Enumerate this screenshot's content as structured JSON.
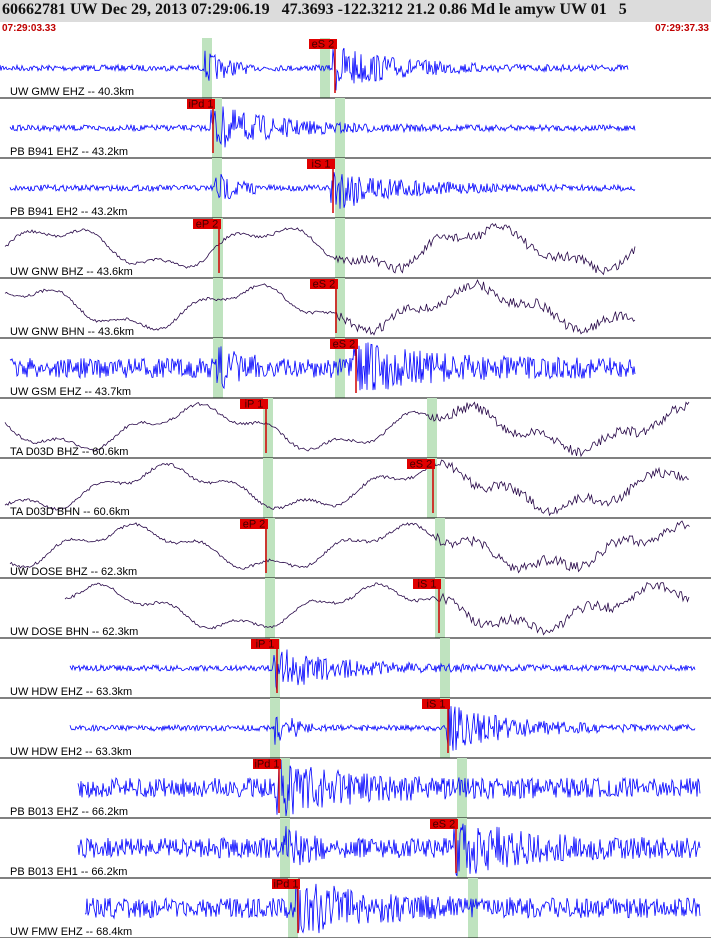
{
  "header": {
    "title": "60662781 UW Dec 29, 2013 07:29:06.19   47.3693 -122.3212 21.2 0.86 Md le amyw UW 01   5",
    "start_time": "07:29:03.33",
    "end_time": "07:29:37.33"
  },
  "traces": [
    {
      "label": "UW GMW EHZ -- 40.3km",
      "pick": "eS 2",
      "color": "#0000ff"
    },
    {
      "label": "PB B941 EHZ -- 43.2km",
      "pick": "iPd 1",
      "color": "#0000ff"
    },
    {
      "label": "PB B941 EH2 -- 43.2km",
      "pick": "iS 1",
      "color": "#0000ff"
    },
    {
      "label": "UW GNW BHZ -- 43.6km",
      "pick": "eP 2",
      "color": "#2a0a4a"
    },
    {
      "label": "UW GNW BHN -- 43.6km",
      "pick": "eS 2",
      "color": "#2a0a4a"
    },
    {
      "label": "UW GSM EHZ -- 43.7km",
      "pick": "eS 2",
      "color": "#0000ff"
    },
    {
      "label": "TA D03D BHZ -- 60.6km",
      "pick": "iP 1",
      "color": "#2a0a4a"
    },
    {
      "label": "TA D03D BHN -- 60.6km",
      "pick": "eS 2",
      "color": "#2a0a4a"
    },
    {
      "label": "UW DOSE BHZ -- 62.3km",
      "pick": "eP 2",
      "color": "#2a0a4a"
    },
    {
      "label": "UW DOSE BHN -- 62.3km",
      "pick": "iS 1",
      "color": "#2a0a4a"
    },
    {
      "label": "UW HDW EHZ -- 63.3km",
      "pick": "iP 1",
      "color": "#0000ff"
    },
    {
      "label": "UW HDW EH2 -- 63.3km",
      "pick": "iS 1",
      "color": "#0000ff"
    },
    {
      "label": "PB B013 EHZ -- 66.2km",
      "pick": "iPd 1",
      "color": "#0000ff"
    },
    {
      "label": "PB B013 EH1 -- 66.2km",
      "pick": "eS 2",
      "color": "#0000ff"
    },
    {
      "label": "UW FMW EHZ -- 68.4km",
      "pick": "iPd 1",
      "color": "#0000ff"
    }
  ]
}
